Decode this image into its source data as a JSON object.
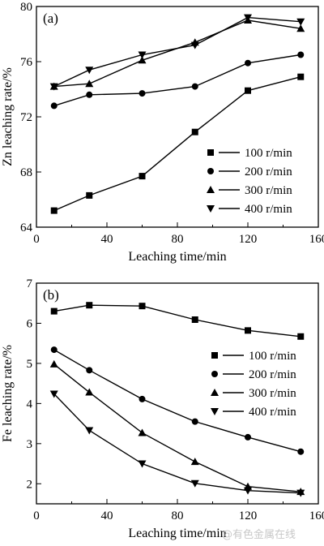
{
  "watermark": "@有色金属在线",
  "chart_data": [
    {
      "type": "line",
      "panel_label": "(a)",
      "xlabel": "Leaching time/min",
      "ylabel": "Zn leaching rate/%",
      "xlim": [
        0,
        160
      ],
      "ylim": [
        64,
        80
      ],
      "x_ticks": [
        "0",
        "40",
        "80",
        "120",
        "160"
      ],
      "y_ticks": [
        "64",
        "68",
        "72",
        "76",
        "80"
      ],
      "legend_position": "lower-right",
      "x": [
        10,
        30,
        60,
        90,
        120,
        150
      ],
      "series": [
        {
          "name": "100 r/min",
          "marker": "square",
          "values": [
            65.2,
            66.3,
            67.7,
            70.9,
            73.9,
            74.9
          ]
        },
        {
          "name": "200 r/min",
          "marker": "circle",
          "values": [
            72.8,
            73.6,
            73.7,
            74.2,
            75.9,
            76.5
          ]
        },
        {
          "name": "300 r/min",
          "marker": "triangle-up",
          "values": [
            74.2,
            74.4,
            76.1,
            77.4,
            79.0,
            78.4
          ]
        },
        {
          "name": "400 r/min",
          "marker": "triangle-down",
          "values": [
            74.2,
            75.4,
            76.5,
            77.2,
            79.2,
            78.9
          ]
        }
      ]
    },
    {
      "type": "line",
      "panel_label": "(b)",
      "xlabel": "Leaching time/min",
      "ylabel": "Fe leaching rate/%",
      "xlim": [
        0,
        160
      ],
      "ylim": [
        1.5,
        7
      ],
      "x_ticks": [
        "0",
        "40",
        "80",
        "120",
        "160"
      ],
      "y_ticks": [
        "2",
        "3",
        "4",
        "5",
        "6",
        "7"
      ],
      "legend_position": "right",
      "x": [
        10,
        30,
        60,
        90,
        120,
        150
      ],
      "series": [
        {
          "name": "100 r/min",
          "marker": "square",
          "values": [
            6.3,
            6.45,
            6.43,
            6.09,
            5.82,
            5.67
          ]
        },
        {
          "name": "200 r/min",
          "marker": "circle",
          "values": [
            5.34,
            4.83,
            4.11,
            3.55,
            3.16,
            2.8
          ]
        },
        {
          "name": "300 r/min",
          "marker": "triangle-up",
          "values": [
            4.98,
            4.28,
            3.27,
            2.55,
            1.93,
            1.8
          ]
        },
        {
          "name": "400 r/min",
          "marker": "triangle-down",
          "values": [
            4.24,
            3.33,
            2.5,
            2.01,
            1.83,
            1.77
          ]
        }
      ]
    }
  ]
}
